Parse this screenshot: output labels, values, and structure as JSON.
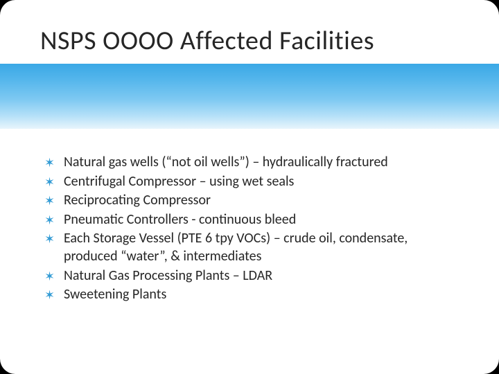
{
  "title": "NSPS OOOO Affected Facilities",
  "title_color": "#262626",
  "title_fontsize": 38,
  "band_gradient": [
    "#3aa8e6",
    "#55b6ec",
    "#7ec9f2",
    "#b5e0f8",
    "#e8f5fc"
  ],
  "background_color": "#ffffff",
  "corner_color": "#000000",
  "bullet_color": "#309ad4",
  "bullet_glyph": "✶",
  "text_color": "#262626",
  "text_fontsize": 20,
  "bullets": [
    "Natural gas wells (“not oil wells”) – hydraulically fractured",
    "Centrifugal Compressor – using wet seals",
    "Reciprocating Compressor",
    "Pneumatic Controllers  - continuous bleed",
    "Each Storage Vessel (PTE 6 tpy VOCs) – crude oil, condensate, produced “water”, & intermediates",
    "Natural Gas Processing Plants – LDAR",
    "Sweetening Plants"
  ]
}
